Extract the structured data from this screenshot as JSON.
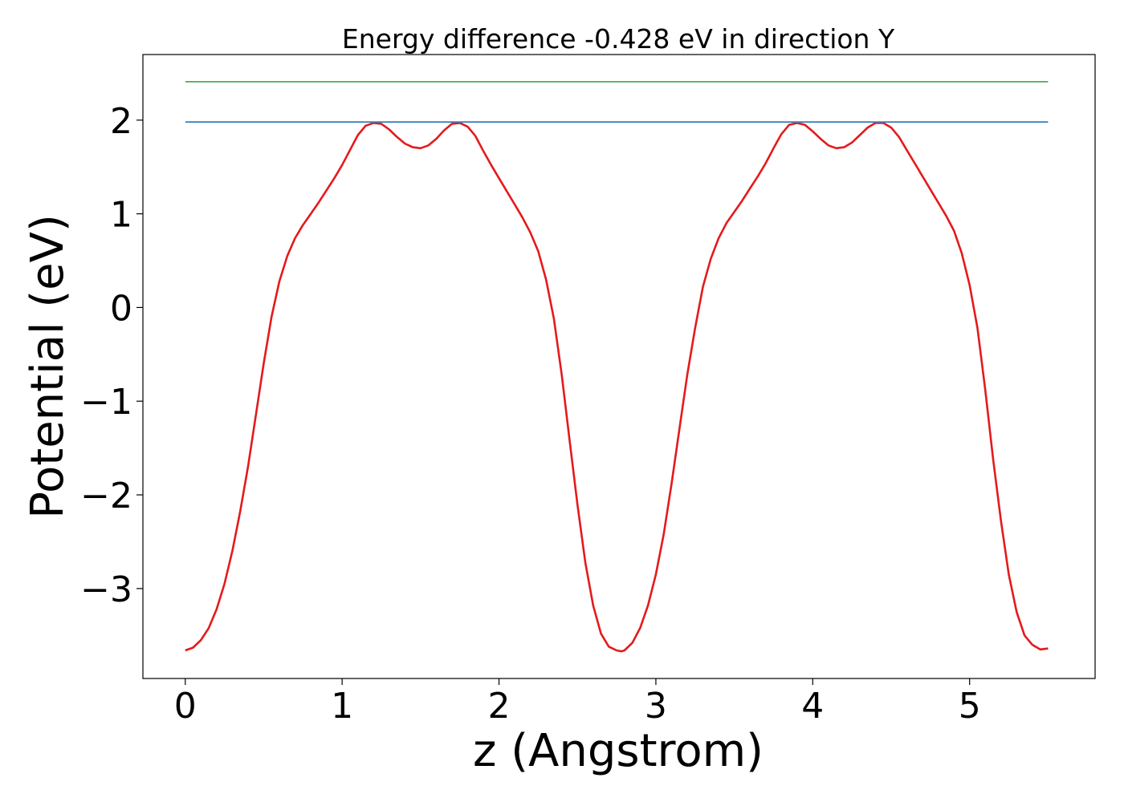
{
  "chart_data": {
    "type": "line",
    "title": "Energy difference -0.428 eV in direction Y",
    "xlabel": "z (Angstrom)",
    "ylabel": "Potential (eV)",
    "xlim": [
      -0.27,
      5.8
    ],
    "ylim": [
      -3.96,
      2.7
    ],
    "xticks": [
      0,
      1,
      2,
      3,
      4,
      5
    ],
    "xtick_labels": [
      "0",
      "1",
      "2",
      "3",
      "4",
      "5"
    ],
    "yticks": [
      -3,
      -2,
      -1,
      0,
      1,
      2
    ],
    "ytick_labels": [
      "−3",
      "−2",
      "−1",
      "0",
      "1",
      "2"
    ],
    "grid": false,
    "legend": "none",
    "series": [
      {
        "color": "#e41a1c",
        "x": [
          0.0,
          0.05,
          0.1,
          0.15,
          0.2,
          0.25,
          0.3,
          0.35,
          0.4,
          0.45,
          0.5,
          0.55,
          0.6,
          0.65,
          0.7,
          0.75,
          0.8,
          0.85,
          0.9,
          0.95,
          1.0,
          1.05,
          1.1,
          1.15,
          1.2,
          1.25,
          1.3,
          1.35,
          1.4,
          1.45,
          1.5,
          1.55,
          1.6,
          1.65,
          1.7,
          1.75,
          1.8,
          1.85,
          1.9,
          1.95,
          2.0,
          2.05,
          2.1,
          2.15,
          2.2,
          2.25,
          2.3,
          2.35,
          2.4,
          2.45,
          2.5,
          2.55,
          2.6,
          2.65,
          2.7,
          2.75,
          2.78,
          2.8,
          2.85,
          2.9,
          2.95,
          3.0,
          3.05,
          3.1,
          3.15,
          3.2,
          3.25,
          3.3,
          3.35,
          3.4,
          3.45,
          3.5,
          3.55,
          3.6,
          3.65,
          3.7,
          3.75,
          3.8,
          3.85,
          3.9,
          3.95,
          4.0,
          4.05,
          4.1,
          4.15,
          4.2,
          4.25,
          4.3,
          4.35,
          4.4,
          4.45,
          4.5,
          4.55,
          4.6,
          4.65,
          4.7,
          4.75,
          4.8,
          4.85,
          4.9,
          4.95,
          5.0,
          5.05,
          5.1,
          5.15,
          5.2,
          5.25,
          5.3,
          5.35,
          5.4,
          5.45,
          5.5
        ],
        "y": [
          -3.66,
          -3.63,
          -3.55,
          -3.42,
          -3.22,
          -2.95,
          -2.6,
          -2.18,
          -1.7,
          -1.15,
          -0.6,
          -0.1,
          0.28,
          0.55,
          0.74,
          0.88,
          1.0,
          1.12,
          1.25,
          1.38,
          1.52,
          1.68,
          1.84,
          1.94,
          1.97,
          1.96,
          1.9,
          1.82,
          1.75,
          1.71,
          1.7,
          1.73,
          1.8,
          1.89,
          1.96,
          1.97,
          1.93,
          1.83,
          1.67,
          1.52,
          1.38,
          1.24,
          1.1,
          0.96,
          0.8,
          0.6,
          0.3,
          -0.12,
          -0.72,
          -1.42,
          -2.1,
          -2.72,
          -3.18,
          -3.48,
          -3.62,
          -3.66,
          -3.67,
          -3.66,
          -3.58,
          -3.42,
          -3.18,
          -2.85,
          -2.42,
          -1.88,
          -1.3,
          -0.72,
          -0.22,
          0.22,
          0.52,
          0.74,
          0.9,
          1.02,
          1.14,
          1.27,
          1.4,
          1.54,
          1.7,
          1.85,
          1.95,
          1.97,
          1.95,
          1.88,
          1.8,
          1.73,
          1.7,
          1.71,
          1.76,
          1.84,
          1.92,
          1.97,
          1.97,
          1.92,
          1.82,
          1.68,
          1.54,
          1.4,
          1.26,
          1.12,
          0.98,
          0.82,
          0.58,
          0.24,
          -0.22,
          -0.88,
          -1.62,
          -2.28,
          -2.85,
          -3.25,
          -3.5,
          -3.6,
          -3.65,
          -3.64
        ]
      },
      {
        "color": "#377eb8",
        "x": [
          0.0,
          5.5
        ],
        "y": [
          1.98,
          1.98
        ]
      },
      {
        "color": "#4daf4a",
        "x": [
          0.0,
          5.5
        ],
        "y": [
          2.41,
          2.41
        ]
      }
    ]
  }
}
